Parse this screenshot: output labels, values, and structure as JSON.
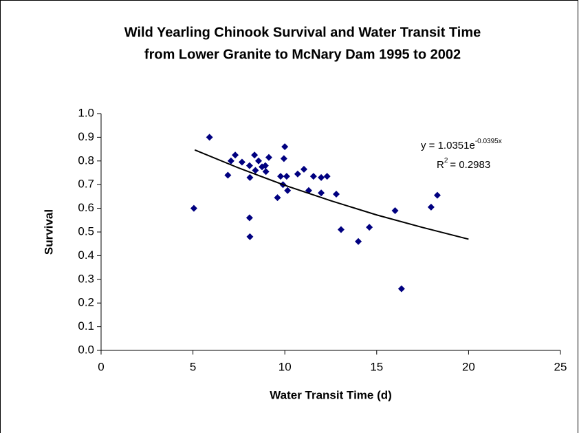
{
  "chart_data": {
    "type": "scatter",
    "title": [
      "Wild Yearling Chinook Survival and Water Transit Time",
      "from Lower Granite to McNary Dam 1995 to 2002"
    ],
    "xlabel": "Water Transit Time (d)",
    "ylabel": "Survival",
    "xlim": [
      0,
      25
    ],
    "xticks": [
      0,
      5,
      10,
      15,
      20,
      25
    ],
    "ylim": [
      0,
      1
    ],
    "yticks": [
      {
        "value": 0,
        "label": "0.0"
      },
      {
        "value": 0.1,
        "label": "0.1"
      },
      {
        "value": 0.2,
        "label": "0.2"
      },
      {
        "value": 0.3,
        "label": "0.3"
      },
      {
        "value": 0.4,
        "label": "0.4"
      },
      {
        "value": 0.5,
        "label": "0.5"
      },
      {
        "value": 0.6,
        "label": "0.6"
      },
      {
        "value": 0.7,
        "label": "0.7"
      },
      {
        "value": 0.8,
        "label": "0.8"
      },
      {
        "value": 0.9,
        "label": "0.9"
      },
      {
        "value": 1,
        "label": "1.0"
      }
    ],
    "series": [
      {
        "color": "#000080",
        "x": [
          5.05,
          5.9,
          6.9,
          7.07,
          7.3,
          7.67,
          8.08,
          8.1,
          8.08,
          8.1,
          8.35,
          8.4,
          8.57,
          8.76,
          8.97,
          8.94,
          9.13,
          9.6,
          9.77,
          9.9,
          9.95,
          10.0,
          10.1,
          10.15,
          10.7,
          11.04,
          11.3,
          11.56,
          11.98,
          11.98,
          12.3,
          12.8,
          13.06,
          14.0,
          14.6,
          16.0,
          16.35,
          17.96,
          18.3
        ],
        "values": [
          0.6,
          0.9,
          0.74,
          0.8,
          0.825,
          0.795,
          0.78,
          0.73,
          0.56,
          0.48,
          0.825,
          0.76,
          0.8,
          0.775,
          0.755,
          0.78,
          0.815,
          0.645,
          0.735,
          0.7,
          0.81,
          0.86,
          0.735,
          0.675,
          0.745,
          0.765,
          0.675,
          0.735,
          0.73,
          0.665,
          0.735,
          0.66,
          0.51,
          0.46,
          0.52,
          0.59,
          0.26,
          0.605,
          0.655
        ]
      },
      {
        "color": "#000000",
        "x": [
          5.1,
          7.5,
          10,
          12.5,
          15,
          17.5,
          20
        ],
        "values": [
          0.8465,
          0.77,
          0.697,
          0.632,
          0.572,
          0.519,
          0.4697
        ]
      }
    ],
    "equation": "y = 1.0351e",
    "equation_exponent": "-0.0395x",
    "r_squared_label": "R",
    "r_squared_exponent": "2",
    "r_squared_value": "= 0.2983"
  }
}
